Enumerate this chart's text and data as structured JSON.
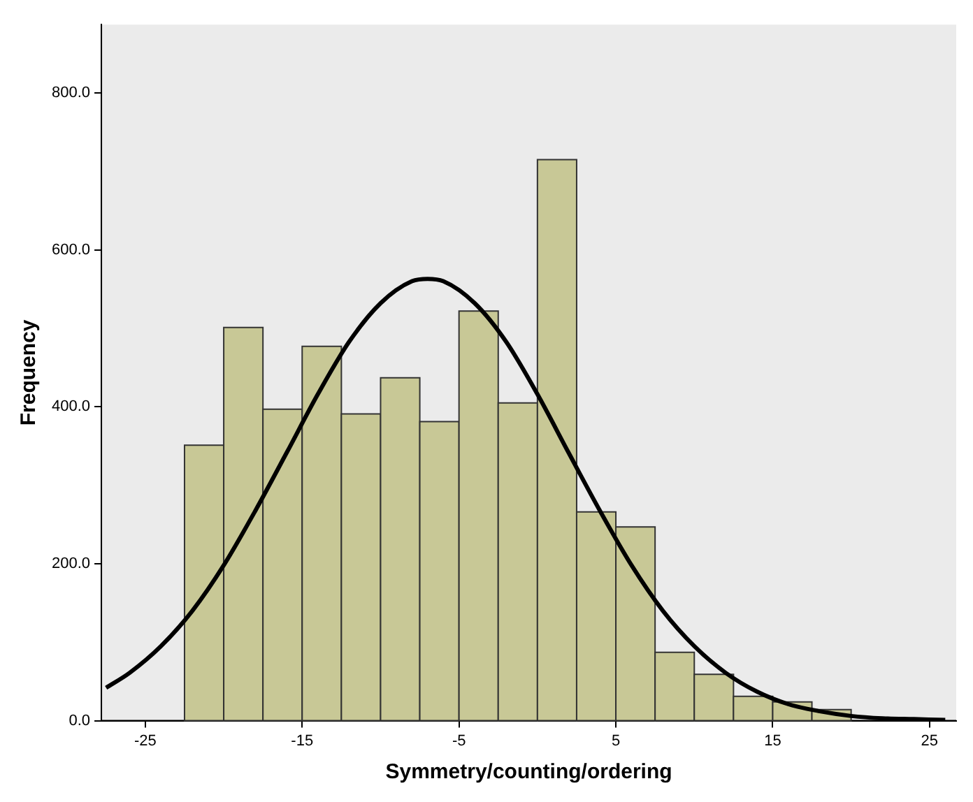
{
  "chart_data": {
    "type": "histogram",
    "xlabel": "Symmetry/counting/ordering",
    "ylabel": "Frequency",
    "bins": [
      -22.5,
      -20,
      -17.5,
      -15,
      -12.5,
      -10,
      -7.5,
      -5,
      -2.5,
      0,
      2.5,
      5,
      7.5,
      10,
      12.5,
      15,
      17.5,
      20
    ],
    "values": [
      351,
      501,
      397,
      477,
      391,
      437,
      381,
      522,
      405,
      715,
      266,
      247,
      87,
      59,
      31,
      24,
      14
    ],
    "color": "#c8c896",
    "series": [
      {
        "type": "line",
        "color": "#000000",
        "x": [
          -27.5,
          -26,
          -24,
          -22,
          -20,
          -18,
          -16,
          -14,
          -12,
          -10,
          -8,
          -7,
          -6,
          -4,
          -2,
          0,
          2,
          4,
          6,
          8,
          10,
          12,
          14,
          16,
          18,
          20,
          22,
          24,
          26
        ],
        "values": [
          42,
          61,
          95,
          140,
          198,
          267,
          341,
          416,
          483,
          532,
          560,
          563,
          560,
          532,
          483,
          416,
          341,
          267,
          198,
          140,
          95,
          61,
          37,
          21,
          12,
          6,
          3,
          2,
          1
        ]
      }
    ],
    "xlim": [
      -27.8,
      26.7
    ],
    "xticks": [
      -25,
      -15,
      -5,
      5,
      15,
      25
    ],
    "ylim": [
      0,
      887
    ],
    "yticks": [
      {
        "value": 0,
        "label": "0.0"
      },
      {
        "value": 200,
        "label": "200.0"
      },
      {
        "value": 400,
        "label": "400.0"
      },
      {
        "value": 600,
        "label": "600.0"
      },
      {
        "value": 800,
        "label": "800.0"
      }
    ],
    "grid": false,
    "legend": false,
    "marker": "none",
    "line_style": "solid"
  }
}
